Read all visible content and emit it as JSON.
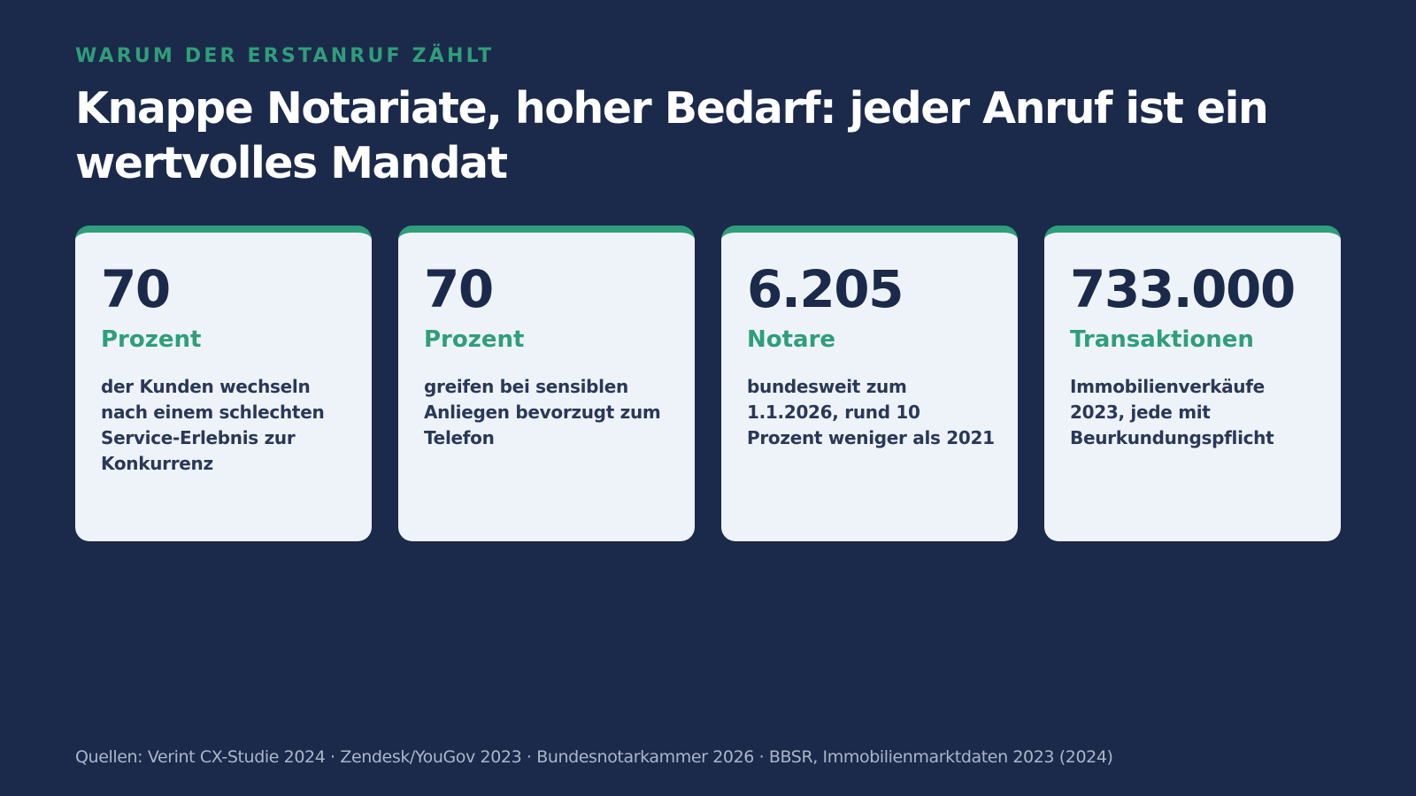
{
  "header": {
    "eyebrow": "WARUM DER ERSTANRUF ZÄHLT",
    "title": "Knappe Notariate, hoher Bedarf: jeder Anruf ist ein wertvolles Mandat"
  },
  "cards": [
    {
      "value": "70",
      "unit": "Prozent",
      "description": "der Kunden wechseln nach einem schlechten Service-Erlebnis zur Konkurrenz"
    },
    {
      "value": "70",
      "unit": "Prozent",
      "description": "greifen bei sensiblen Anliegen bevorzugt zum Telefon"
    },
    {
      "value": "6.205",
      "unit": "Notare",
      "description": "bundesweit zum 1.1.2026, rund 10 Prozent weniger als 2021"
    },
    {
      "value": "733.000",
      "unit": "Transaktionen",
      "description": "Immobilienverkäufe 2023, jede mit Beurkundungspflicht"
    }
  ],
  "footer": {
    "sources": "Quellen: Verint CX-Studie 2024 · Zendesk/YouGov 2023 · Bundesnotarkammer 2026 · BBSR, Immobilienmarktdaten 2023 (2024)"
  },
  "colors": {
    "background": "#1b2a4a",
    "accent": "#2f9e7a",
    "card": "#eef3f9",
    "text_dark": "#1b2a4a",
    "footer_text": "#a9b6cc"
  }
}
